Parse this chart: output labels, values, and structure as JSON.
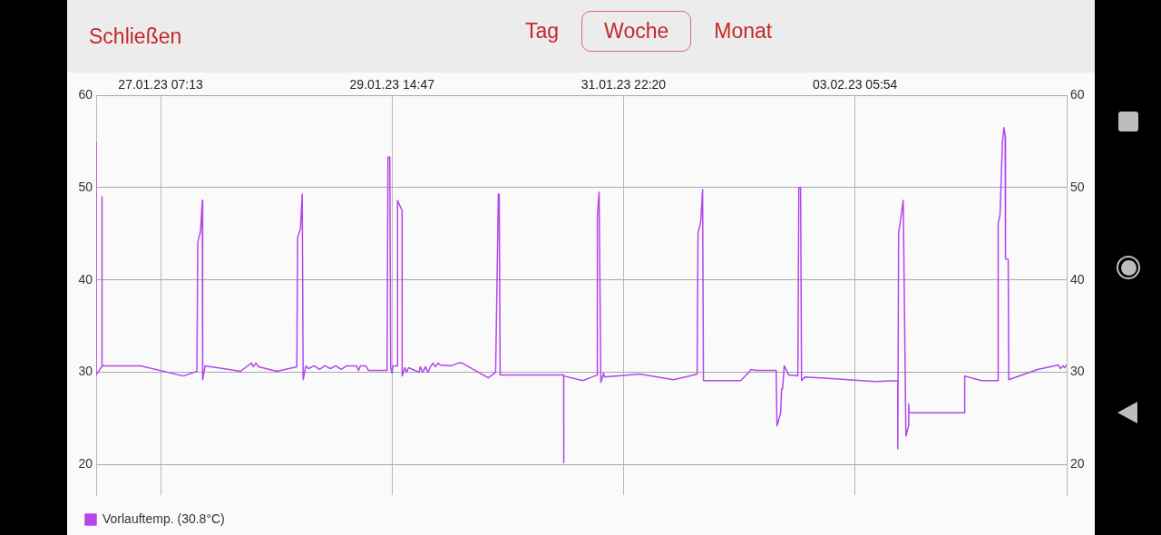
{
  "chart_data": {
    "type": "line",
    "annotations": [
      "Schließen",
      "Tag",
      "Woche",
      "Monat"
    ],
    "xlim": [
      "--01-26T15:45",
      "--02-05T08:42"
    ],
    "xticks": [
      {
        "value": "--01-27T07:13",
        "label": "27.01.23 07:13"
      },
      {
        "value": "--01-29T14:47",
        "label": "29.01.23 14:47"
      },
      {
        "value": "--01-31T22:20",
        "label": "31.01.23 22:20"
      },
      {
        "value": "--02-03T05:54",
        "label": "03.02.23 05:54"
      }
    ],
    "ylim": [
      16.7,
      60
    ],
    "yticks": [
      20,
      30,
      40,
      50,
      60
    ],
    "y2lim": [
      16.7,
      60
    ],
    "y2ticks": [
      20,
      30,
      40,
      50,
      60
    ],
    "grid": true,
    "legend": "bottom left",
    "marker": "none",
    "line_style": "solid",
    "x": [
      "--01-26T15:45",
      "--01-26T15:45",
      "--01-26T17:04",
      "--01-26T17:04",
      "--01-26T17:16",
      "--01-27T02:26",
      "--01-27T12:40",
      "--01-27T15:56",
      "--01-27T16:09",
      "--01-27T16:49",
      "--01-27T17:14",
      "--01-27T17:19",
      "--01-27T17:54",
      "--01-28T02:24",
      "--01-28T05:01",
      "--01-28T05:27",
      "--01-28T06:06",
      "--01-28T06:45",
      "--01-28T11:07",
      "--01-28T15:55",
      "--01-28T16:07",
      "--01-28T16:47",
      "--01-28T17:13",
      "--01-28T17:26",
      "--01-28T18:05",
      "--01-28T18:44",
      "--01-28T20:03",
      "--01-28T21:21",
      "--01-28T22:40",
      "--01-28T23:58",
      "--01-29T01:16",
      "--01-29T02:35",
      "--01-29T03:53",
      "--01-29T06:17",
      "--01-29T06:43",
      "--01-29T07:10",
      "--01-29T08:28",
      "--01-29T09:07",
      "--01-29T13:35",
      "--01-29T13:48",
      "--01-29T14:14",
      "--01-29T14:27",
      "--01-29T14:47",
      "--01-29T15:00",
      "--01-29T16:05",
      "--01-29T16:06",
      "--01-29T17:11",
      "--01-29T17:12",
      "--01-29T17:50",
      "--01-29T18:16",
      "--01-29T18:43",
      "--01-29T21:19",
      "--01-29T21:32",
      "--01-29T22:12",
      "--01-29T22:48",
      "--01-29T23:24",
      "--01-30T00:00",
      "--01-30T00:35",
      "--01-30T01:12",
      "--01-30T01:48",
      "--01-30T02:20",
      "--01-30T04:57",
      "--01-30T06:41",
      "--01-30T07:34",
      "--01-30T13:53",
      "--01-30T15:38",
      "--01-30T16:04",
      "--01-30T16:17",
      "--01-30T16:30",
      "--01-30T16:43",
      "--01-31T07:58",
      "--01-31T07:59",
      "--01-31T08:00",
      "--01-31T12:33",
      "--01-31T14:17",
      "--01-31T16:02",
      "--01-31T16:03",
      "--01-31T16:28",
      "--01-31T16:54",
      "--01-31T17:34",
      "--01-31T17:46",
      "--02-01T02:16",
      "--02-01T10:20",
      "--02-01T16:00",
      "--02-01T16:13",
      "--02-01T16:52",
      "--02-01T17:19",
      "--02-01T17:31",
      "--02-02T02:28",
      "--02-02T04:38",
      "--02-02T04:52",
      "--02-02T06:10",
      "--02-02T10:58",
      "--02-02T11:11",
      "--02-02T12:03",
      "--02-02T12:16",
      "--02-02T12:30",
      "--02-02T12:55",
      "--02-02T14:01",
      "--02-02T16:11",
      "--02-02T16:25",
      "--02-02T16:50",
      "--02-02T17:04",
      "--02-02T17:56",
      "--02-03T01:07",
      "--02-03T10:43",
      "--02-03T16:09",
      "--02-03T16:10",
      "--02-03T16:22",
      "--02-03T17:02",
      "--02-03T17:28",
      "--02-03T18:07",
      "--02-03T18:46",
      "--02-03T18:47",
      "--02-03T18:54",
      "--02-04T08:13",
      "--02-04T08:14",
      "--02-04T12:12",
      "--02-04T16:11",
      "--02-04T16:11",
      "--02-04T16:20",
      "--02-04T16:43",
      "--02-04T17:17",
      "--02-04T17:39",
      "--02-04T17:56",
      "--02-04T18:01",
      "--02-04T18:40",
      "--02-04T18:48",
      "--02-05T01:43",
      "--02-05T06:43",
      "--02-05T07:10",
      "--02-05T07:49",
      "--02-05T08:14",
      "--02-05T08:41"
    ],
    "series": [
      {
        "name": "Vorlauftemp. (30.8°C)",
        "color": "#b347ea",
        "values": [
          54.9,
          29.7,
          30.6,
          49.0,
          30.7,
          30.7,
          29.6,
          30.1,
          44.1,
          45.3,
          48.6,
          29.2,
          30.7,
          30.1,
          31.0,
          30.6,
          31.0,
          30.6,
          30.1,
          30.6,
          44.6,
          45.5,
          49.3,
          29.2,
          30.7,
          30.4,
          30.7,
          30.3,
          30.7,
          30.4,
          30.7,
          30.3,
          30.7,
          30.7,
          30.2,
          30.7,
          30.7,
          30.2,
          30.2,
          53.3,
          53.3,
          30.5,
          29.9,
          30.7,
          30.7,
          48.6,
          47.5,
          29.6,
          30.5,
          30.0,
          30.5,
          30.0,
          30.6,
          30.0,
          30.6,
          30.0,
          30.6,
          31.0,
          30.6,
          31.0,
          30.8,
          30.7,
          31.0,
          31.0,
          29.4,
          30.0,
          42.4,
          49.3,
          49.3,
          29.7,
          29.7,
          20.2,
          29.6,
          29.1,
          29.4,
          29.7,
          46.8,
          49.5,
          28.9,
          29.9,
          29.5,
          29.8,
          29.2,
          29.8,
          45.1,
          46.3,
          49.8,
          29.1,
          29.1,
          30.1,
          30.3,
          30.2,
          30.2,
          24.2,
          25.6,
          28.2,
          28.2,
          30.7,
          29.7,
          29.6,
          50.0,
          50.0,
          29.1,
          29.5,
          29.3,
          29.0,
          29.1,
          21.7,
          45.1,
          47.1,
          48.6,
          23.1,
          24.2,
          26.6,
          25.6,
          25.6,
          29.6,
          29.1,
          29.1,
          40.0,
          46.1,
          47.1,
          54.9,
          56.5,
          55.6,
          42.3,
          42.2,
          29.2,
          30.3,
          30.8,
          30.4,
          30.7,
          30.5,
          30.8
        ]
      }
    ]
  }
}
